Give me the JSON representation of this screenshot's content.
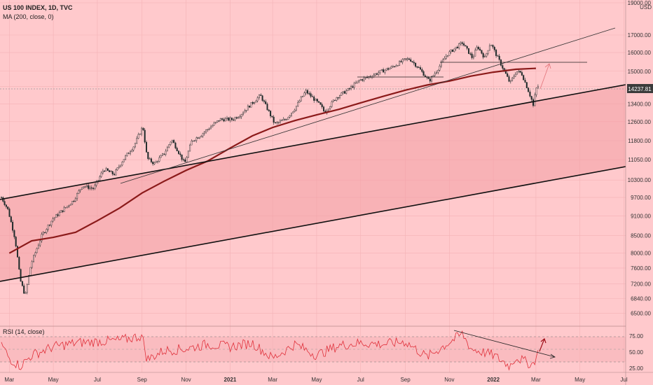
{
  "header": {
    "title": "US 100 INDEX, 1D, TVC",
    "indicator": "MA (200, close, 0)"
  },
  "rsi_header": "RSI (14, close)",
  "currency": "USD",
  "colors": {
    "background": "#ffc9cc",
    "candle": "#1f2a2a",
    "ma": "#8b1a1a",
    "rsi": "#e0303a",
    "channel_fill": "#f29ea4",
    "price_tag_bg": "#3b3b3b"
  },
  "chart_data": [
    {
      "type": "line",
      "title": "US 100 INDEX, 1D, TVC",
      "y_axis_labels": [
        "19000.00",
        "17000.00",
        "16000.00",
        "15000.00",
        "14237.81",
        "13400.00",
        "12600.00",
        "11800.00",
        "11050.00",
        "10300.00",
        "9700.00",
        "9100.00",
        "8500.00",
        "8000.00",
        "7600.00",
        "7200.00",
        "6840.00",
        "6500.00"
      ],
      "y_axis_scale": "log",
      "ylim": [
        6400,
        19000
      ],
      "x_axis_labels": [
        "Mar",
        "May",
        "Jul",
        "Sep",
        "Nov",
        "2021",
        "Mar",
        "May",
        "Jul",
        "Sep",
        "Nov",
        "2022",
        "Mar",
        "May",
        "Jul"
      ],
      "last_price": "14237.81",
      "series": [
        {
          "name": "MA (200, close, 0)",
          "x": [
            "2020-03-01",
            "2020-04-01",
            "2020-05-01",
            "2020-06-01",
            "2020-07-01",
            "2020-08-01",
            "2020-09-01",
            "2020-10-01",
            "2020-11-01",
            "2020-12-01",
            "2021-01-01",
            "2021-02-01",
            "2021-03-01",
            "2021-04-01",
            "2021-05-01",
            "2021-06-01",
            "2021-07-01",
            "2021-08-01",
            "2021-09-01",
            "2021-10-01",
            "2021-11-01",
            "2021-12-01",
            "2022-01-01",
            "2022-02-01",
            "2022-03-01"
          ],
          "values": [
            8000,
            8350,
            8450,
            8600,
            8950,
            9350,
            9850,
            10250,
            10650,
            11000,
            11500,
            12000,
            12350,
            12650,
            12900,
            13150,
            13450,
            13750,
            14050,
            14300,
            14500,
            14750,
            14950,
            15100,
            15150
          ]
        },
        {
          "name": "Close",
          "x": [
            "2020-02-19",
            "2020-02-28",
            "2020-03-09",
            "2020-03-16",
            "2020-03-23",
            "2020-03-31",
            "2020-04-15",
            "2020-04-30",
            "2020-05-15",
            "2020-05-29",
            "2020-06-10",
            "2020-06-26",
            "2020-07-10",
            "2020-07-24",
            "2020-08-07",
            "2020-08-21",
            "2020-09-02",
            "2020-09-08",
            "2020-09-18",
            "2020-10-02",
            "2020-10-12",
            "2020-10-30",
            "2020-11-09",
            "2020-11-20",
            "2020-12-04",
            "2020-12-18",
            "2021-01-04",
            "2021-01-15",
            "2021-02-12",
            "2021-03-04",
            "2021-03-19",
            "2021-04-01",
            "2021-04-16",
            "2021-05-07",
            "2021-05-12",
            "2021-05-28",
            "2021-06-15",
            "2021-06-30",
            "2021-07-15",
            "2021-07-30",
            "2021-08-13",
            "2021-08-31",
            "2021-09-07",
            "2021-09-20",
            "2021-10-04",
            "2021-10-14",
            "2021-10-29",
            "2021-11-19",
            "2021-12-03",
            "2021-12-10",
            "2021-12-20",
            "2021-12-28",
            "2022-01-06",
            "2022-01-24",
            "2022-02-02",
            "2022-02-09",
            "2022-02-23",
            "2022-02-24",
            "2022-03-01",
            "2022-03-04"
          ],
          "values": [
            9700,
            9300,
            8400,
            7300,
            6900,
            7700,
            8500,
            9000,
            9300,
            9600,
            10100,
            10000,
            10700,
            10500,
            11100,
            11600,
            12400,
            11100,
            10900,
            11300,
            11850,
            10900,
            11800,
            12000,
            12350,
            12700,
            12700,
            12900,
            13800,
            12500,
            12700,
            13200,
            14000,
            13300,
            13000,
            13700,
            14100,
            14550,
            14750,
            15000,
            15200,
            15600,
            15650,
            15150,
            14500,
            15000,
            15900,
            16550,
            15700,
            16350,
            15700,
            16550,
            15800,
            14400,
            15000,
            14900,
            13600,
            13050,
            14100,
            14237.81
          ]
        }
      ]
    },
    {
      "type": "line",
      "title": "RSI (14, close)",
      "y_axis_labels": [
        "75.00",
        "50.00",
        "25.00"
      ],
      "ylim": [
        15,
        90
      ],
      "series": [
        {
          "name": "RSI (14, close)",
          "x": [
            "2020-02-19",
            "2020-03-01",
            "2020-03-16",
            "2020-04-01",
            "2020-05-01",
            "2020-06-01",
            "2020-07-01",
            "2020-08-01",
            "2020-09-01",
            "2020-09-08",
            "2020-10-01",
            "2020-11-01",
            "2020-12-01",
            "2021-01-01",
            "2021-02-01",
            "2021-03-01",
            "2021-04-01",
            "2021-05-01",
            "2021-06-01",
            "2021-07-01",
            "2021-08-01",
            "2021-09-01",
            "2021-10-01",
            "2021-11-01",
            "2021-11-19",
            "2021-12-01",
            "2022-01-01",
            "2022-01-24",
            "2022-02-01",
            "2022-02-24",
            "2022-03-04"
          ],
          "values": [
            62,
            40,
            28,
            45,
            58,
            64,
            66,
            68,
            75,
            38,
            52,
            55,
            62,
            58,
            64,
            40,
            62,
            45,
            60,
            64,
            62,
            66,
            42,
            65,
            78,
            55,
            45,
            28,
            42,
            30,
            48
          ]
        }
      ]
    }
  ]
}
